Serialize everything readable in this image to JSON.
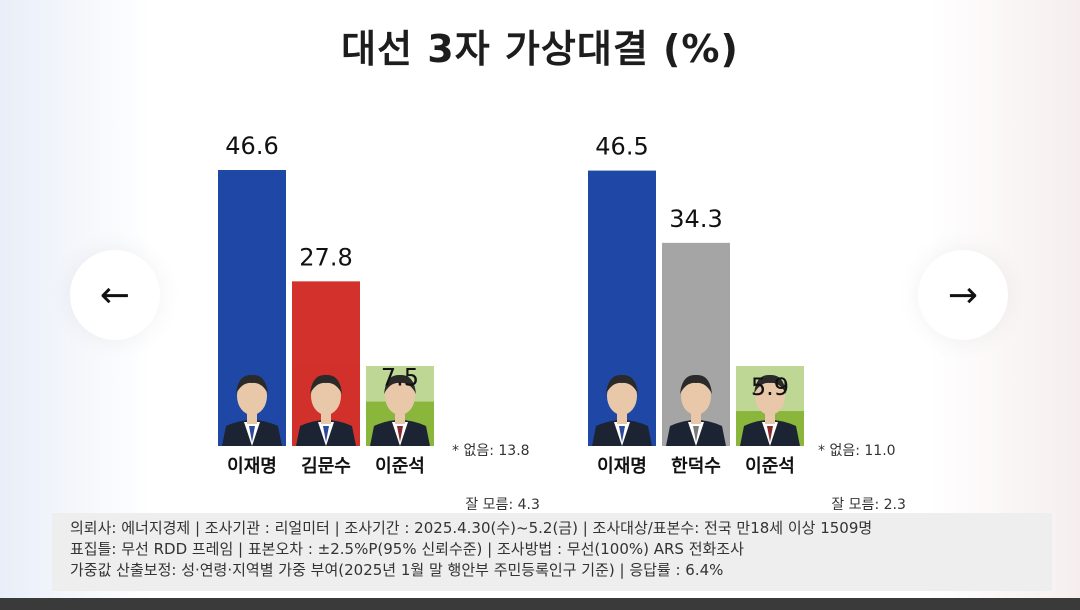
{
  "title": "대선 3자 가상대결 (%)",
  "navigation": {
    "prev_icon": "←",
    "next_icon": "→"
  },
  "colors": {
    "blue": "#1f48a6",
    "red": "#d2322b",
    "gray": "#a5a5a5",
    "green": "#8bb63c"
  },
  "chart_data": [
    {
      "type": "bar",
      "categories": [
        "이재명",
        "김문수",
        "이준석"
      ],
      "values": [
        46.6,
        27.8,
        7.5
      ],
      "colors": [
        "#1f48a6",
        "#d2322b",
        "#8bb63c"
      ],
      "ylim": [
        0,
        46.6
      ],
      "note": [
        "* 없음: 13.8",
        "   잘 모름: 4.3"
      ]
    },
    {
      "type": "bar",
      "categories": [
        "이재명",
        "한덕수",
        "이준석"
      ],
      "values": [
        46.5,
        34.3,
        5.9
      ],
      "colors": [
        "#1f48a6",
        "#a5a5a5",
        "#8bb63c"
      ],
      "ylim": [
        0,
        46.6
      ],
      "note": [
        "* 없음: 11.0",
        "   잘 모름: 2.3"
      ]
    }
  ],
  "footer": {
    "lines": [
      "의뢰사: 에너지경제 | 조사기관 : 리얼미터  |  조사기간 : 2025.4.30(수)~5.2(금) | 조사대상/표본수: 전국 만18세 이상 1509명",
      "표집틀: 무선 RDD 프레임 | 표본오차 : ±2.5%P(95% 신뢰수준) | 조사방법 : 무선(100%) ARS 전화조사",
      "가중값 산출보정: 성·연령·지역별 가중 부여(2025년 1월 말 행안부 주민등록인구 기준) | 응답률 : 6.4%"
    ]
  }
}
